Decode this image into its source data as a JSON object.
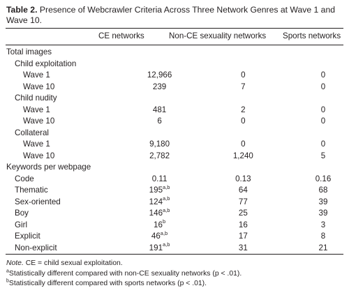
{
  "caption": {
    "label": "Table 2.",
    "text": "Presence of Webcrawler Criteria Across Three Network Genres at Wave 1 and Wave 10."
  },
  "table": {
    "columns": [
      "",
      "CE networks",
      "Non-CE sexuality networks",
      "Sports networks"
    ],
    "rows": [
      {
        "label": "Total images",
        "level": 0,
        "cells": null
      },
      {
        "label": "Child exploitation",
        "level": 1,
        "cells": null
      },
      {
        "label": "Wave 1",
        "level": 2,
        "cells": [
          {
            "v": "12,966"
          },
          {
            "v": "0"
          },
          {
            "v": "0"
          }
        ]
      },
      {
        "label": "Wave 10",
        "level": 2,
        "cells": [
          {
            "v": "239"
          },
          {
            "v": "7"
          },
          {
            "v": "0"
          }
        ]
      },
      {
        "label": "Child nudity",
        "level": 1,
        "cells": null
      },
      {
        "label": "Wave 1",
        "level": 2,
        "cells": [
          {
            "v": "481"
          },
          {
            "v": "2"
          },
          {
            "v": "0"
          }
        ]
      },
      {
        "label": "Wave 10",
        "level": 2,
        "cells": [
          {
            "v": "6"
          },
          {
            "v": "0"
          },
          {
            "v": "0"
          }
        ]
      },
      {
        "label": "Collateral",
        "level": 1,
        "cells": null
      },
      {
        "label": "Wave 1",
        "level": 2,
        "cells": [
          {
            "v": "9,180"
          },
          {
            "v": "0"
          },
          {
            "v": "0"
          }
        ]
      },
      {
        "label": "Wave 10",
        "level": 2,
        "cells": [
          {
            "v": "2,782"
          },
          {
            "v": "1,240"
          },
          {
            "v": "5"
          }
        ]
      },
      {
        "label": "Keywords per webpage",
        "level": 0,
        "cells": null
      },
      {
        "label": "Code",
        "level": 1,
        "cells": [
          {
            "v": "0.11"
          },
          {
            "v": "0.13"
          },
          {
            "v": "0.16"
          }
        ]
      },
      {
        "label": "Thematic",
        "level": 1,
        "cells": [
          {
            "v": "195",
            "sup": "a,b"
          },
          {
            "v": "64"
          },
          {
            "v": "68"
          }
        ]
      },
      {
        "label": "Sex-oriented",
        "level": 1,
        "cells": [
          {
            "v": "124",
            "sup": "a,b"
          },
          {
            "v": "77"
          },
          {
            "v": "39"
          }
        ]
      },
      {
        "label": "Boy",
        "level": 1,
        "cells": [
          {
            "v": "146",
            "sup": "a,b"
          },
          {
            "v": "25"
          },
          {
            "v": "39"
          }
        ]
      },
      {
        "label": "Girl",
        "level": 1,
        "cells": [
          {
            "v": "16",
            "sup": "b"
          },
          {
            "v": "16"
          },
          {
            "v": "3"
          }
        ]
      },
      {
        "label": "Explicit",
        "level": 1,
        "cells": [
          {
            "v": "46",
            "sup": "a,b"
          },
          {
            "v": "17"
          },
          {
            "v": "8"
          }
        ]
      },
      {
        "label": "Non-explicit",
        "level": 1,
        "cells": [
          {
            "v": "191",
            "sup": "a,b"
          },
          {
            "v": "31"
          },
          {
            "v": "21"
          }
        ]
      }
    ]
  },
  "notes": {
    "note_label": "Note.",
    "note_text": " CE = child sexual exploitation.",
    "footnote_a_mark": "a",
    "footnote_a_text": "Statistically different compared with non-CE sexuality networks (p < .01).",
    "footnote_b_mark": "b",
    "footnote_b_text": "Statistically different compared with sports networks (p < .01)."
  }
}
